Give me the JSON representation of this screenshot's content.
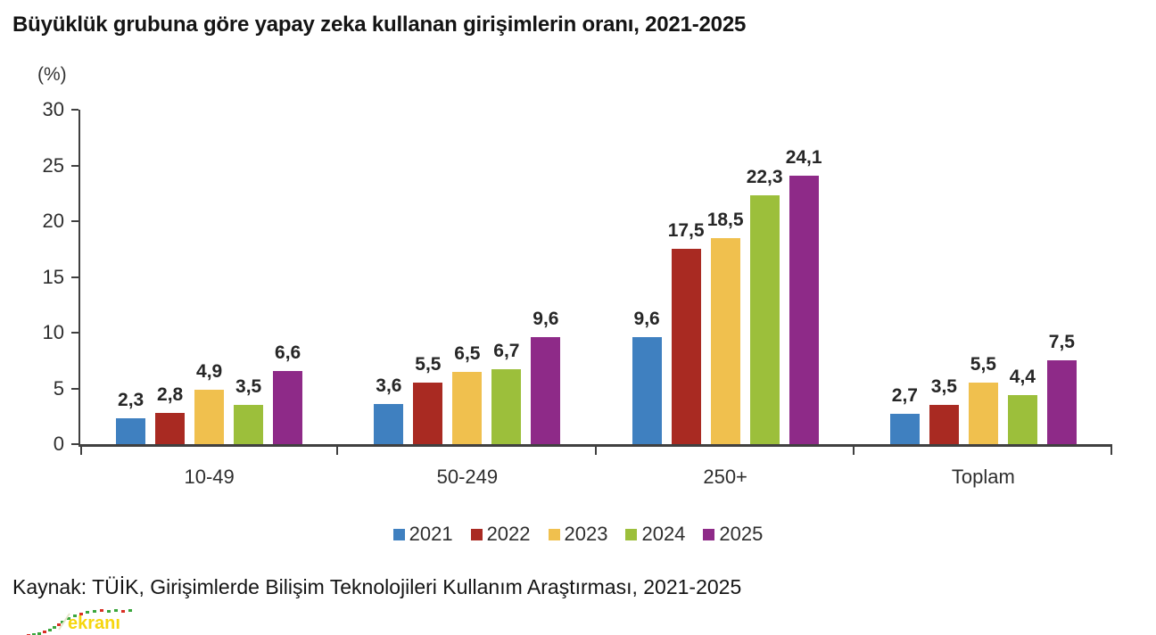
{
  "title": "Büyüklük grubuna göre yapay zeka kullanan girişimlerin oranı, 2021-2025",
  "chart_data": {
    "type": "bar",
    "title": "Büyüklük grubuna göre yapay zeka kullanan girişimlerin oranı, 2021-2025",
    "unit_label": "(%)",
    "categories": [
      "10-49",
      "50-249",
      "250+",
      "Toplam"
    ],
    "series": [
      {
        "name": "2021",
        "color": "#3f80c0",
        "values": [
          2.3,
          3.6,
          9.6,
          2.7
        ]
      },
      {
        "name": "2022",
        "color": "#a92a22",
        "values": [
          2.8,
          5.5,
          17.5,
          3.5
        ]
      },
      {
        "name": "2023",
        "color": "#f0c04e",
        "values": [
          4.9,
          6.5,
          18.5,
          5.5
        ]
      },
      {
        "name": "2024",
        "color": "#9cbf3b",
        "values": [
          3.5,
          6.7,
          22.3,
          4.4
        ]
      },
      {
        "name": "2025",
        "color": "#8e2a88",
        "values": [
          6.6,
          9.6,
          24.1,
          7.5
        ]
      }
    ],
    "ylim": [
      0,
      30
    ],
    "ytick_step": 5,
    "grid": false,
    "legend_position": "bottom",
    "decimal_separator": ",",
    "axis_color": "#404040"
  },
  "source": "Kaynak: TÜİK, Girişimlerde Bilişim Teknolojileri Kullanım Araştırması, 2021-2025",
  "watermark": {
    "text": "ekranı",
    "color": "#f6d60d"
  }
}
